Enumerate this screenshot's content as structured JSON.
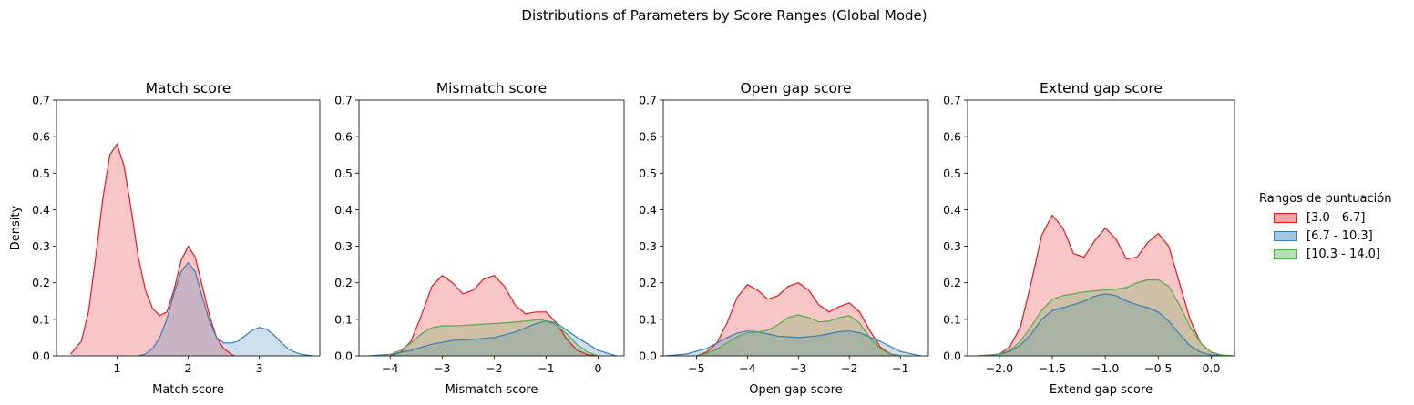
{
  "figure": {
    "suptitle": "Distributions of Parameters by Score Ranges (Global Mode)",
    "ylabel": "Density"
  },
  "legend": {
    "title": "Rangos de puntuación",
    "placement": "right",
    "items": [
      {
        "label": "[3.0 - 6.7]",
        "color": "#e41a1c",
        "fill": "#f4a5a6"
      },
      {
        "label": "[6.7 - 10.3]",
        "color": "#377eb8",
        "fill": "#a6c5e1"
      },
      {
        "label": "[10.3 - 14.0]",
        "color": "#4daf4a",
        "fill": "#b8dfb7"
      }
    ]
  },
  "chart_data": [
    {
      "type": "area",
      "title": "Match score",
      "xlabel": "Match score",
      "ylabel": "Density",
      "xlim": [
        0.15,
        3.85
      ],
      "ylim": [
        0,
        0.7
      ],
      "xticks": [
        1,
        2,
        3
      ],
      "yticks": [
        0.0,
        0.1,
        0.2,
        0.3,
        0.4,
        0.5,
        0.6,
        0.7
      ],
      "series": [
        {
          "name": "[3.0 - 6.7]",
          "color": "#e41a1c",
          "fill": "#f4a5a6",
          "x": [
            0.35,
            0.5,
            0.6,
            0.7,
            0.8,
            0.9,
            1.0,
            1.1,
            1.2,
            1.3,
            1.4,
            1.5,
            1.6,
            1.7,
            1.8,
            1.9,
            2.0,
            2.1,
            2.2,
            2.3,
            2.4,
            2.5,
            2.6,
            2.65
          ],
          "y": [
            0.005,
            0.04,
            0.12,
            0.27,
            0.43,
            0.55,
            0.58,
            0.52,
            0.4,
            0.27,
            0.18,
            0.13,
            0.11,
            0.12,
            0.18,
            0.26,
            0.3,
            0.27,
            0.19,
            0.11,
            0.05,
            0.02,
            0.005,
            0.0
          ]
        },
        {
          "name": "[6.7 - 10.3]",
          "color": "#377eb8",
          "fill": "#a6c5e1",
          "x": [
            1.3,
            1.4,
            1.5,
            1.6,
            1.7,
            1.8,
            1.9,
            2.0,
            2.1,
            2.2,
            2.3,
            2.4,
            2.5,
            2.6,
            2.7,
            2.8,
            2.9,
            3.0,
            3.1,
            3.2,
            3.3,
            3.4,
            3.5,
            3.6,
            3.75
          ],
          "y": [
            0.0,
            0.005,
            0.02,
            0.05,
            0.1,
            0.17,
            0.23,
            0.255,
            0.23,
            0.16,
            0.095,
            0.05,
            0.035,
            0.035,
            0.04,
            0.055,
            0.07,
            0.078,
            0.073,
            0.058,
            0.038,
            0.02,
            0.01,
            0.004,
            0.0
          ]
        },
        {
          "name": "[10.3 - 14.0]",
          "color": "#4daf4a",
          "fill": "#b8dfb7",
          "x": [],
          "y": []
        }
      ]
    },
    {
      "type": "area",
      "title": "Mismatch score",
      "xlabel": "Mismatch score",
      "ylabel": "",
      "xlim": [
        -4.6,
        0.5
      ],
      "ylim": [
        0,
        0.7
      ],
      "xticks": [
        -4,
        -3,
        -2,
        -1,
        0
      ],
      "yticks": [
        0.0,
        0.1,
        0.2,
        0.3,
        0.4,
        0.5,
        0.6,
        0.7
      ],
      "series": [
        {
          "name": "[3.0 - 6.7]",
          "color": "#e41a1c",
          "fill": "#f4a5a6",
          "x": [
            -4.0,
            -3.8,
            -3.6,
            -3.4,
            -3.2,
            -3.0,
            -2.8,
            -2.6,
            -2.4,
            -2.2,
            -2.0,
            -1.8,
            -1.6,
            -1.4,
            -1.2,
            -1.0,
            -0.8,
            -0.6,
            -0.4,
            -0.2,
            0.0
          ],
          "y": [
            0.0,
            0.01,
            0.04,
            0.11,
            0.19,
            0.22,
            0.2,
            0.17,
            0.18,
            0.21,
            0.22,
            0.19,
            0.14,
            0.115,
            0.12,
            0.12,
            0.09,
            0.045,
            0.015,
            0.003,
            0.0
          ]
        },
        {
          "name": "[6.7 - 10.3]",
          "color": "#377eb8",
          "fill": "#a6c5e1",
          "x": [
            -4.4,
            -4.0,
            -3.6,
            -3.2,
            -2.8,
            -2.4,
            -2.0,
            -1.6,
            -1.2,
            -1.0,
            -0.8,
            -0.4,
            0.0,
            0.35
          ],
          "y": [
            0.0,
            0.004,
            0.015,
            0.032,
            0.042,
            0.045,
            0.05,
            0.065,
            0.088,
            0.096,
            0.09,
            0.05,
            0.015,
            0.0
          ]
        },
        {
          "name": "[10.3 - 14.0]",
          "color": "#4daf4a",
          "fill": "#b8dfb7",
          "x": [
            -4.2,
            -4.0,
            -3.8,
            -3.6,
            -3.4,
            -3.2,
            -3.0,
            -2.6,
            -2.2,
            -1.8,
            -1.4,
            -1.1,
            -0.8,
            -0.6,
            -0.4,
            -0.2,
            0.0
          ],
          "y": [
            0.0,
            0.004,
            0.015,
            0.035,
            0.06,
            0.077,
            0.082,
            0.083,
            0.087,
            0.09,
            0.095,
            0.1,
            0.085,
            0.06,
            0.03,
            0.01,
            0.0
          ]
        }
      ]
    },
    {
      "type": "area",
      "title": "Open gap score",
      "xlabel": "Open gap score",
      "ylabel": "",
      "xlim": [
        -5.65,
        -0.45
      ],
      "ylim": [
        0,
        0.7
      ],
      "xticks": [
        -5,
        -4,
        -3,
        -2,
        -1
      ],
      "yticks": [
        0.0,
        0.1,
        0.2,
        0.3,
        0.4,
        0.5,
        0.6,
        0.7
      ],
      "series": [
        {
          "name": "[3.0 - 6.7]",
          "color": "#e41a1c",
          "fill": "#f4a5a6",
          "x": [
            -5.0,
            -4.8,
            -4.6,
            -4.4,
            -4.2,
            -4.0,
            -3.8,
            -3.6,
            -3.4,
            -3.2,
            -3.0,
            -2.8,
            -2.6,
            -2.4,
            -2.2,
            -2.0,
            -1.8,
            -1.6,
            -1.4,
            -1.2,
            -1.0
          ],
          "y": [
            0.0,
            0.01,
            0.035,
            0.09,
            0.16,
            0.195,
            0.18,
            0.155,
            0.165,
            0.19,
            0.2,
            0.18,
            0.14,
            0.12,
            0.135,
            0.145,
            0.12,
            0.07,
            0.025,
            0.006,
            0.0
          ]
        },
        {
          "name": "[6.7 - 10.3]",
          "color": "#377eb8",
          "fill": "#a6c5e1",
          "x": [
            -5.6,
            -5.2,
            -4.8,
            -4.4,
            -4.2,
            -4.0,
            -3.8,
            -3.6,
            -3.4,
            -3.0,
            -2.6,
            -2.2,
            -2.0,
            -1.8,
            -1.4,
            -1.0,
            -0.6
          ],
          "y": [
            0.0,
            0.005,
            0.02,
            0.05,
            0.062,
            0.068,
            0.066,
            0.06,
            0.054,
            0.05,
            0.055,
            0.066,
            0.068,
            0.063,
            0.04,
            0.012,
            0.0
          ]
        },
        {
          "name": "[10.3 - 14.0]",
          "color": "#4daf4a",
          "fill": "#b8dfb7",
          "x": [
            -5.0,
            -4.8,
            -4.6,
            -4.4,
            -4.2,
            -4.0,
            -3.8,
            -3.6,
            -3.4,
            -3.2,
            -3.0,
            -2.8,
            -2.6,
            -2.4,
            -2.2,
            -2.0,
            -1.8,
            -1.6,
            -1.4,
            -1.2,
            -1.0
          ],
          "y": [
            0.0,
            0.006,
            0.018,
            0.035,
            0.052,
            0.063,
            0.065,
            0.07,
            0.085,
            0.105,
            0.112,
            0.105,
            0.093,
            0.095,
            0.105,
            0.11,
            0.09,
            0.05,
            0.02,
            0.005,
            0.0
          ]
        }
      ]
    },
    {
      "type": "area",
      "title": "Extend gap score",
      "xlabel": "Extend gap score",
      "ylabel": "",
      "xlim": [
        -2.3,
        0.22
      ],
      "ylim": [
        0,
        0.7
      ],
      "xticks": [
        -2.0,
        -1.5,
        -1.0,
        -0.5,
        0.0
      ],
      "yticks": [
        0.0,
        0.1,
        0.2,
        0.3,
        0.4,
        0.5,
        0.6,
        0.7
      ],
      "series": [
        {
          "name": "[3.0 - 6.7]",
          "color": "#e41a1c",
          "fill": "#f4a5a6",
          "x": [
            -2.15,
            -2.0,
            -1.9,
            -1.8,
            -1.7,
            -1.6,
            -1.5,
            -1.4,
            -1.3,
            -1.2,
            -1.1,
            -1.0,
            -0.9,
            -0.8,
            -0.7,
            -0.6,
            -0.5,
            -0.4,
            -0.3,
            -0.2,
            -0.1,
            0.0,
            0.1,
            0.2
          ],
          "y": [
            0.0,
            0.005,
            0.025,
            0.08,
            0.2,
            0.33,
            0.385,
            0.35,
            0.28,
            0.27,
            0.315,
            0.35,
            0.32,
            0.265,
            0.27,
            0.31,
            0.335,
            0.3,
            0.2,
            0.1,
            0.035,
            0.01,
            0.002,
            0.0
          ]
        },
        {
          "name": "[6.7 - 10.3]",
          "color": "#377eb8",
          "fill": "#a6c5e1",
          "x": [
            -2.2,
            -2.0,
            -1.9,
            -1.8,
            -1.7,
            -1.6,
            -1.5,
            -1.4,
            -1.3,
            -1.2,
            -1.1,
            -1.0,
            -0.9,
            -0.8,
            -0.7,
            -0.6,
            -0.5,
            -0.4,
            -0.3,
            -0.2,
            -0.1,
            0.0,
            0.1,
            0.2
          ],
          "y": [
            0.0,
            0.004,
            0.012,
            0.03,
            0.06,
            0.1,
            0.124,
            0.132,
            0.14,
            0.15,
            0.163,
            0.17,
            0.165,
            0.15,
            0.14,
            0.132,
            0.12,
            0.095,
            0.06,
            0.028,
            0.01,
            0.003,
            0.001,
            0.0
          ]
        },
        {
          "name": "[10.3 - 14.0]",
          "color": "#4daf4a",
          "fill": "#b8dfb7",
          "x": [
            -2.2,
            -2.0,
            -1.9,
            -1.8,
            -1.7,
            -1.6,
            -1.5,
            -1.4,
            -1.3,
            -1.2,
            -1.1,
            -1.0,
            -0.9,
            -0.8,
            -0.7,
            -0.6,
            -0.5,
            -0.4,
            -0.3,
            -0.2,
            -0.1,
            0.0,
            0.1,
            0.2
          ],
          "y": [
            0.0,
            0.005,
            0.015,
            0.04,
            0.08,
            0.125,
            0.155,
            0.165,
            0.17,
            0.175,
            0.178,
            0.18,
            0.182,
            0.187,
            0.2,
            0.208,
            0.208,
            0.19,
            0.14,
            0.08,
            0.035,
            0.01,
            0.002,
            0.0
          ]
        }
      ]
    }
  ]
}
